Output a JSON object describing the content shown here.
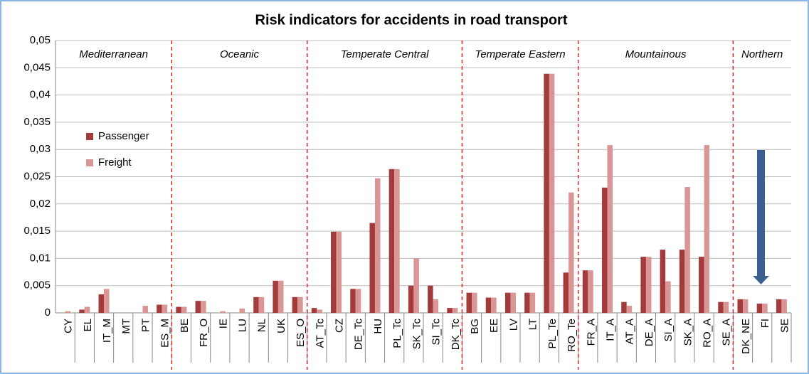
{
  "chart_data": {
    "type": "bar",
    "title": "Risk indicators for accidents  in road transport",
    "categories": [
      "CY",
      "EL",
      "IT_M",
      "MT",
      "PT",
      "ES_M",
      "BE",
      "FR_O",
      "IE",
      "LU",
      "NL",
      "UK",
      "ES_O",
      "AT_Tc",
      "CZ",
      "DE_Tc",
      "HU",
      "PL_Tc",
      "SK_Tc",
      "SI_Tc",
      "DK_Tc",
      "BG",
      "EE",
      "LV",
      "LT",
      "PL_Te",
      "RO_Te",
      "FR_A",
      "IT_A",
      "AT_A",
      "DE_A",
      "SI_A",
      "SK_A",
      "RO_A",
      "SE_A",
      "DK_NE",
      "FI",
      "SE"
    ],
    "series": [
      {
        "name": "Passenger",
        "color": "#a33a3b",
        "values": [
          0,
          0.0006,
          0.0034,
          0,
          0,
          0.0015,
          0.0011,
          0.0022,
          0,
          0,
          0.0029,
          0.0059,
          0.0029,
          0.0009,
          0.0149,
          0.0044,
          0.0165,
          0.0264,
          0.005,
          0.005,
          0.0009,
          0.0037,
          0.0028,
          0.0037,
          0.0037,
          0.0439,
          0.0074,
          0.0078,
          0.023,
          0.002,
          0.0103,
          0.0116,
          0.0116,
          0.0103,
          0.002,
          0.0025,
          0.0017,
          0.0025
        ]
      },
      {
        "name": "Freight",
        "color": "#d99694",
        "values": [
          0.0003,
          0.0011,
          0.0044,
          0,
          0.0013,
          0.0015,
          0.0011,
          0.0022,
          0.0003,
          0.0008,
          0.0029,
          0.0059,
          0.0029,
          0.0006,
          0.0149,
          0.0044,
          0.0247,
          0.0264,
          0.01,
          0.0025,
          0.0009,
          0.0037,
          0.0028,
          0.0037,
          0.0037,
          0.0439,
          0.0221,
          0.0078,
          0.0308,
          0.0013,
          0.0103,
          0.0058,
          0.0231,
          0.0308,
          0.002,
          0.0025,
          0.0017,
          0.0025
        ]
      }
    ],
    "regions": [
      "Mediterranean",
      "Oceanic",
      "Temperate Central",
      "Temperate Eastern",
      "Mountainous",
      "Northern"
    ],
    "ylim": [
      0,
      0.05
    ],
    "yticks": [
      0,
      {
        "value": 0.005,
        "label": "0,005"
      },
      {
        "value": 0.01,
        "label": "0,01"
      },
      {
        "value": 0.015,
        "label": "0,015"
      },
      {
        "value": 0.02,
        "label": "0,02"
      },
      {
        "value": 0.025,
        "label": "0,025"
      },
      {
        "value": 0.03,
        "label": "0,03"
      },
      {
        "value": 0.035,
        "label": "0,035"
      },
      {
        "value": 0.04,
        "label": "0,04"
      },
      {
        "value": 0.045,
        "label": "0,045"
      },
      {
        "value": 0.05,
        "label": "0,05"
      }
    ],
    "grid": true
  }
}
